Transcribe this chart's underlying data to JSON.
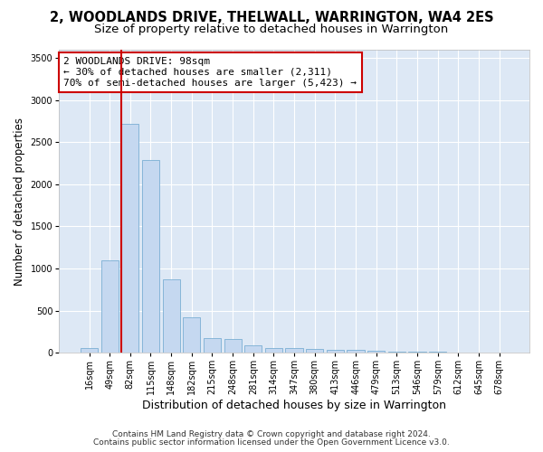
{
  "title": "2, WOODLANDS DRIVE, THELWALL, WARRINGTON, WA4 2ES",
  "subtitle": "Size of property relative to detached houses in Warrington",
  "xlabel": "Distribution of detached houses by size in Warrington",
  "ylabel": "Number of detached properties",
  "categories": [
    "16sqm",
    "49sqm",
    "82sqm",
    "115sqm",
    "148sqm",
    "182sqm",
    "215sqm",
    "248sqm",
    "281sqm",
    "314sqm",
    "347sqm",
    "380sqm",
    "413sqm",
    "446sqm",
    "479sqm",
    "513sqm",
    "546sqm",
    "579sqm",
    "612sqm",
    "645sqm",
    "678sqm"
  ],
  "values": [
    50,
    1100,
    2720,
    2290,
    870,
    415,
    170,
    165,
    90,
    60,
    50,
    40,
    35,
    30,
    20,
    15,
    10,
    8,
    5,
    3,
    2
  ],
  "bar_color": "#c5d8f0",
  "bar_edge_color": "#7bafd4",
  "vline_color": "#cc0000",
  "vline_x_index": 2,
  "annotation_text": "2 WOODLANDS DRIVE: 98sqm\n← 30% of detached houses are smaller (2,311)\n70% of semi-detached houses are larger (5,423) →",
  "annotation_box_facecolor": "#ffffff",
  "annotation_box_edgecolor": "#cc0000",
  "ylim": [
    0,
    3600
  ],
  "yticks": [
    0,
    500,
    1000,
    1500,
    2000,
    2500,
    3000,
    3500
  ],
  "fig_facecolor": "#ffffff",
  "axes_facecolor": "#dde8f5",
  "grid_color": "#ffffff",
  "footer_line1": "Contains HM Land Registry data © Crown copyright and database right 2024.",
  "footer_line2": "Contains public sector information licensed under the Open Government Licence v3.0.",
  "title_fontsize": 10.5,
  "subtitle_fontsize": 9.5,
  "ylabel_fontsize": 8.5,
  "xlabel_fontsize": 9,
  "tick_fontsize": 7,
  "annotation_fontsize": 8,
  "footer_fontsize": 6.5
}
